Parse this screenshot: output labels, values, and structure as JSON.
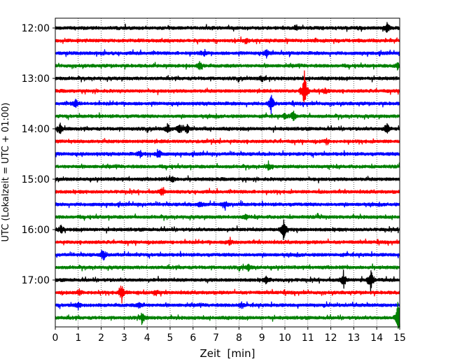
{
  "chart_data": {
    "type": "line",
    "title": "",
    "xlabel": "Zeit  [min]",
    "ylabel": "UTC (Lokalzeit = UTC + 01:00)",
    "xlim": [
      0,
      15
    ],
    "x_ticks": [
      "0",
      "1",
      "2",
      "3",
      "4",
      "5",
      "6",
      "7",
      "8",
      "9",
      "10",
      "11",
      "12",
      "13",
      "14",
      "15"
    ],
    "y_ticks": [
      "12:00",
      "13:00",
      "14:00",
      "15:00",
      "16:00",
      "17:00"
    ],
    "grid": "vertical dotted",
    "line_colors": [
      "#000000",
      "#ff0000",
      "#0000ff",
      "#008000"
    ],
    "traces": [
      {
        "start": "12:00",
        "color": "#000000",
        "events": [
          {
            "t": 14.45,
            "amp": 0.55
          },
          {
            "t": 10.5,
            "amp": 0.3
          }
        ]
      },
      {
        "start": "12:15",
        "color": "#ff0000",
        "events": [
          {
            "t": 8.3,
            "amp": 0.3
          }
        ]
      },
      {
        "start": "12:30",
        "color": "#0000ff",
        "events": [
          {
            "t": 9.2,
            "amp": 0.4
          },
          {
            "t": 6.5,
            "amp": 0.3
          }
        ]
      },
      {
        "start": "12:45",
        "color": "#008000",
        "events": [
          {
            "t": 6.3,
            "amp": 0.4
          },
          {
            "t": 14.9,
            "amp": 0.3
          }
        ]
      },
      {
        "start": "13:00",
        "color": "#000000",
        "events": [
          {
            "t": 9.0,
            "amp": 0.3
          }
        ]
      },
      {
        "start": "13:15",
        "color": "#ff0000",
        "events": [
          {
            "t": 10.85,
            "amp": 2.1
          },
          {
            "t": 11.75,
            "amp": 0.3
          }
        ]
      },
      {
        "start": "13:30",
        "color": "#0000ff",
        "events": [
          {
            "t": 9.4,
            "amp": 0.9
          },
          {
            "t": 0.9,
            "amp": 0.4
          }
        ]
      },
      {
        "start": "13:45",
        "color": "#008000",
        "events": [
          {
            "t": 10.35,
            "amp": 0.55
          },
          {
            "t": 10.0,
            "amp": 0.3
          }
        ]
      },
      {
        "start": "14:00",
        "color": "#000000",
        "events": [
          {
            "t": 0.2,
            "amp": 0.55
          },
          {
            "t": 4.9,
            "amp": 0.5
          },
          {
            "t": 5.4,
            "amp": 0.5
          },
          {
            "t": 5.75,
            "amp": 0.4
          },
          {
            "t": 14.45,
            "amp": 0.6
          }
        ]
      },
      {
        "start": "14:15",
        "color": "#ff0000",
        "events": [
          {
            "t": 11.8,
            "amp": 0.25
          }
        ]
      },
      {
        "start": "14:30",
        "color": "#0000ff",
        "events": [
          {
            "t": 4.5,
            "amp": 0.5
          },
          {
            "t": 3.7,
            "amp": 0.3
          }
        ]
      },
      {
        "start": "14:45",
        "color": "#008000",
        "events": [
          {
            "t": 9.3,
            "amp": 0.3
          }
        ]
      },
      {
        "start": "15:00",
        "color": "#000000",
        "events": [
          {
            "t": 5.1,
            "amp": 0.3
          }
        ]
      },
      {
        "start": "15:15",
        "color": "#ff0000",
        "events": [
          {
            "t": 4.65,
            "amp": 0.4
          }
        ]
      },
      {
        "start": "15:30",
        "color": "#0000ff",
        "events": [
          {
            "t": 7.4,
            "amp": 0.4
          },
          {
            "t": 6.3,
            "amp": 0.25
          }
        ]
      },
      {
        "start": "15:45",
        "color": "#008000",
        "events": [
          {
            "t": 8.3,
            "amp": 0.3
          }
        ]
      },
      {
        "start": "16:00",
        "color": "#000000",
        "events": [
          {
            "t": 9.95,
            "amp": 1.3
          },
          {
            "t": 0.25,
            "amp": 0.35
          }
        ]
      },
      {
        "start": "16:15",
        "color": "#ff0000",
        "events": [
          {
            "t": 7.6,
            "amp": 0.25
          }
        ]
      },
      {
        "start": "16:30",
        "color": "#0000ff",
        "events": [
          {
            "t": 2.1,
            "amp": 0.6
          }
        ]
      },
      {
        "start": "16:45",
        "color": "#008000",
        "events": [
          {
            "t": 8.4,
            "amp": 0.3
          }
        ]
      },
      {
        "start": "17:00",
        "color": "#000000",
        "events": [
          {
            "t": 12.55,
            "amp": 0.9
          },
          {
            "t": 13.75,
            "amp": 1.1
          },
          {
            "t": 9.2,
            "amp": 0.35
          }
        ]
      },
      {
        "start": "17:15",
        "color": "#ff0000",
        "events": [
          {
            "t": 2.9,
            "amp": 0.9
          },
          {
            "t": 1.05,
            "amp": 0.3
          },
          {
            "t": 4.4,
            "amp": 0.25
          }
        ]
      },
      {
        "start": "17:30",
        "color": "#0000ff",
        "events": [
          {
            "t": 1.0,
            "amp": 0.3
          },
          {
            "t": 3.65,
            "amp": 0.25
          },
          {
            "t": 8.1,
            "amp": 0.25
          }
        ]
      },
      {
        "start": "17:45",
        "color": "#008000",
        "events": [
          {
            "t": 3.8,
            "amp": 0.5
          },
          {
            "t": 14.95,
            "amp": 2.0
          }
        ]
      }
    ]
  }
}
